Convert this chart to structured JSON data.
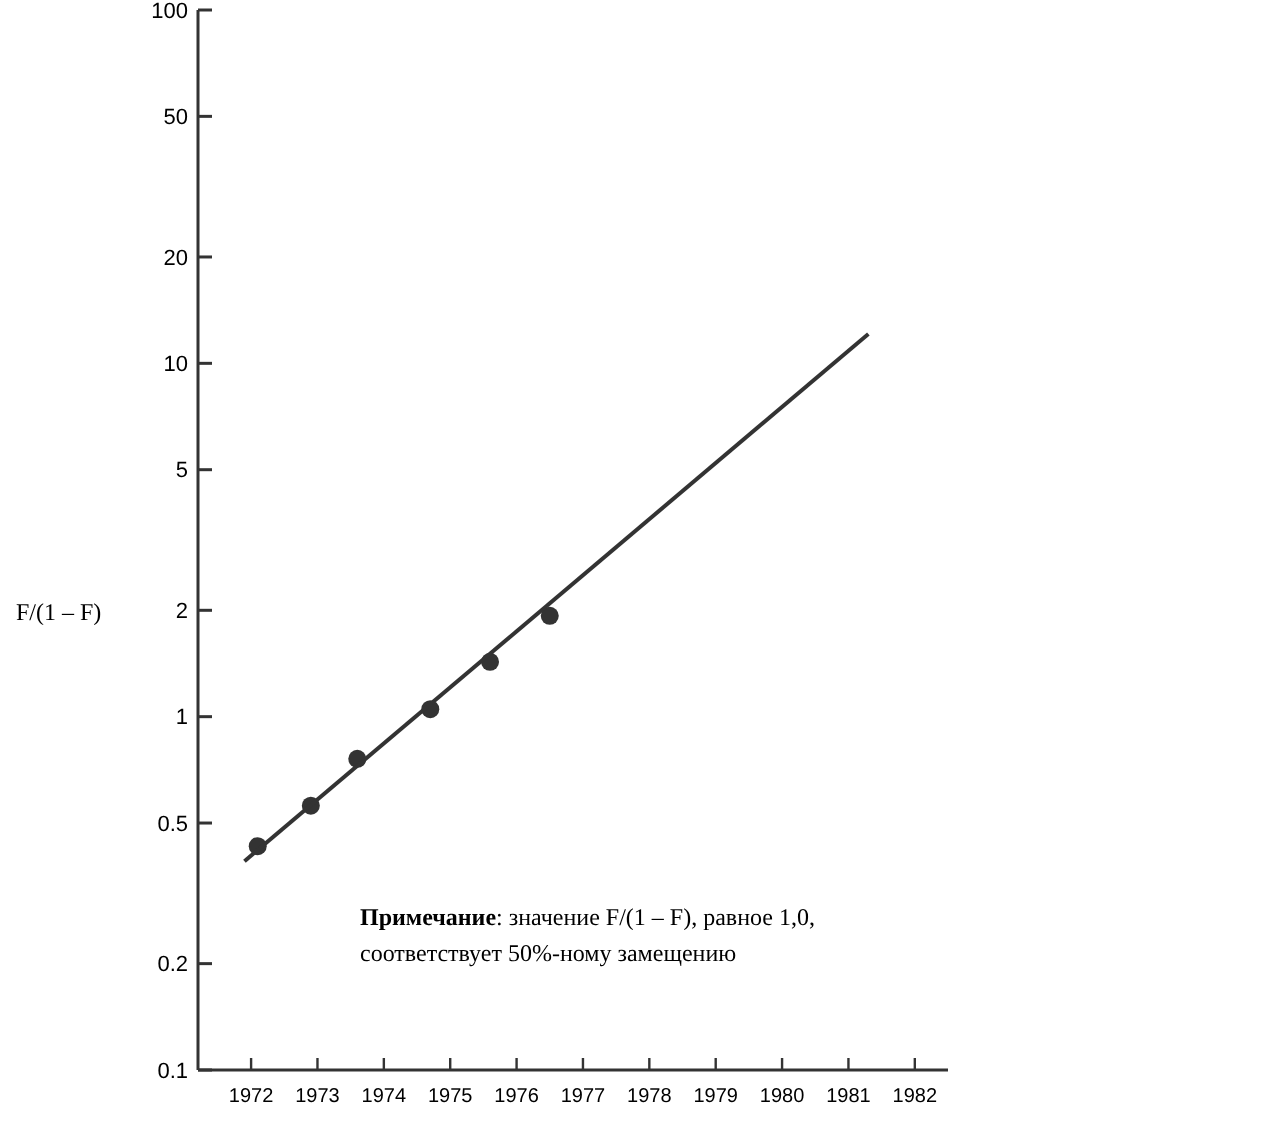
{
  "chart_data": {
    "type": "scatter",
    "ylabel": "F/(1 – F)",
    "log": "y",
    "grid": false,
    "xlim": [
      1971.2,
      1982.5
    ],
    "xticks": [
      1972,
      1973,
      1974,
      1975,
      1976,
      1977,
      1978,
      1979,
      1980,
      1981,
      1982
    ],
    "ylim": [
      0.1,
      100
    ],
    "yticks": [
      0.1,
      0.2,
      0.5,
      1,
      2,
      5,
      10,
      20,
      50,
      100
    ],
    "series": [
      {
        "color": "#333333",
        "marker": "circle",
        "x": [
          1972.1,
          1972.9,
          1973.6,
          1974.7,
          1975.6,
          1976.5
        ],
        "values": [
          0.43,
          0.56,
          0.76,
          1.05,
          1.43,
          1.93
        ]
      },
      {
        "type": "line",
        "marker": "none",
        "color": "#333333",
        "x": [
          1971.9,
          1981.3
        ],
        "values": [
          0.39,
          12.1
        ],
        "line_style": "solid"
      }
    ],
    "annotations": [
      "Примечание: значение F/(1 – F), равное 1,0, соответствует 50%-ному замещению"
    ]
  }
}
